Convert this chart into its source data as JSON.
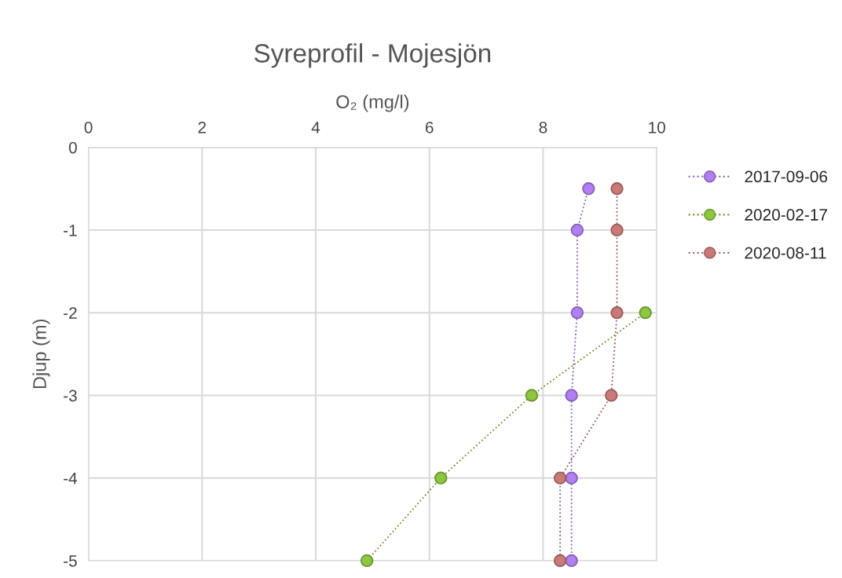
{
  "chart_data": {
    "type": "line",
    "title": "Syreprofil - Mojesjön",
    "xlabel": "O₂ (mg/l)",
    "ylabel": "Djup (m)",
    "xlim": [
      0,
      10
    ],
    "xticks": [
      0,
      2,
      4,
      6,
      8,
      10
    ],
    "ylim": [
      -5,
      0
    ],
    "yticks": [
      0,
      {
        "value": -1,
        "label": "-1"
      },
      {
        "value": -2,
        "label": "-2"
      },
      {
        "value": -3,
        "label": "-3"
      },
      {
        "value": -4,
        "label": "-4"
      },
      {
        "value": -5,
        "label": "-5"
      }
    ],
    "grid": true,
    "legend": "right",
    "marker": "circle",
    "line_style": "dotted",
    "series": [
      {
        "name": "2017-09-06",
        "color": "#b07ff0",
        "x": [
          8.8,
          8.6,
          8.6,
          8.5,
          8.5,
          8.5
        ],
        "values": [
          -0.5,
          -1,
          -2,
          -3,
          -4,
          -5
        ]
      },
      {
        "name": "2020-02-17",
        "color": "#8dc63f",
        "x": [
          9.8,
          7.8,
          6.2,
          4.9
        ],
        "values": [
          -2,
          -3,
          -4,
          -5
        ]
      },
      {
        "name": "2020-08-11",
        "color": "#c97a78",
        "x": [
          9.3,
          9.3,
          9.3,
          9.2,
          8.3,
          8.3
        ],
        "values": [
          -0.5,
          -1,
          -2,
          -3,
          -4,
          -5
        ]
      }
    ]
  }
}
